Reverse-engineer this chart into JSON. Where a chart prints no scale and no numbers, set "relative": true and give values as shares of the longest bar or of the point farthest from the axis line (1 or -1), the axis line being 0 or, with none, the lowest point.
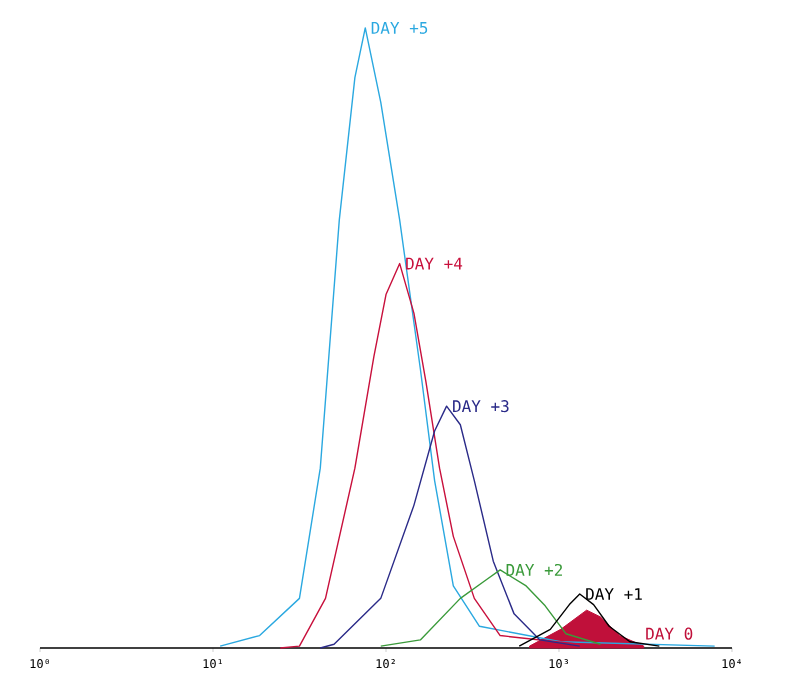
{
  "chart_data": {
    "type": "line",
    "relative": true,
    "log": "x",
    "xlim": [
      1,
      10000
    ],
    "xticks": [
      {
        "value": 1,
        "label": "10⁰"
      },
      {
        "value": 10,
        "label": "10¹"
      },
      {
        "value": 100,
        "label": "10²"
      },
      {
        "value": 1000,
        "label": "10³"
      },
      {
        "value": 10000,
        "label": "10⁴"
      }
    ],
    "tick_labels": "x",
    "marker": "none",
    "line_style": "solid",
    "grid": false,
    "series": [
      {
        "name": "DAY +5",
        "color": "#2aa8e0",
        "x": [
          11,
          18.6,
          31.6,
          41.7,
          53.7,
          66.1,
          75.9,
          93.3,
          120,
          158,
          191,
          245,
          347,
          1023,
          7943
        ],
        "values": [
          0.003,
          0.02,
          0.08,
          0.29,
          0.69,
          0.92,
          1.0,
          0.88,
          0.69,
          0.45,
          0.27,
          0.1,
          0.035,
          0.01,
          0.003
        ]
      },
      {
        "name": "DAY +4",
        "color": "#c8103c",
        "x": [
          24.5,
          31.6,
          44.7,
          66.1,
          85.1,
          100,
          120,
          145,
          170,
          204,
          245,
          324,
          457,
          1318
        ],
        "values": [
          0,
          0.003,
          0.08,
          0.29,
          0.47,
          0.57,
          0.62,
          0.54,
          0.43,
          0.29,
          0.18,
          0.08,
          0.02,
          0.006
        ]
      },
      {
        "name": "DAY +3",
        "color": "#2a2a88",
        "x": [
          41.7,
          50.1,
          93.3,
          145,
          191,
          224,
          269,
          324,
          417,
          550,
          776,
          1318
        ],
        "values": [
          0,
          0.006,
          0.08,
          0.23,
          0.35,
          0.39,
          0.36,
          0.27,
          0.14,
          0.055,
          0.013,
          0.003
        ]
      },
      {
        "name": "DAY +2",
        "color": "#3a9a3a",
        "x": [
          93.3,
          158,
          269,
          380,
          457,
          646,
          832,
          1096,
          1738
        ],
        "values": [
          0.003,
          0.013,
          0.08,
          0.11,
          0.126,
          0.1,
          0.068,
          0.023,
          0.006
        ]
      },
      {
        "name": "DAY +1",
        "color": "#000000",
        "x": [
          589,
          891,
          1148,
          1318,
          1585,
          1950,
          2570,
          3802
        ],
        "values": [
          0.003,
          0.03,
          0.07,
          0.087,
          0.07,
          0.035,
          0.01,
          0.003
        ]
      },
      {
        "name": "DAY 0",
        "type": "area",
        "color": "#c0103a",
        "x": [
          676,
          1023,
          1445,
          1738,
          2239,
          3090
        ],
        "values": [
          0.003,
          0.03,
          0.061,
          0.05,
          0.02,
          0.003
        ]
      }
    ]
  }
}
